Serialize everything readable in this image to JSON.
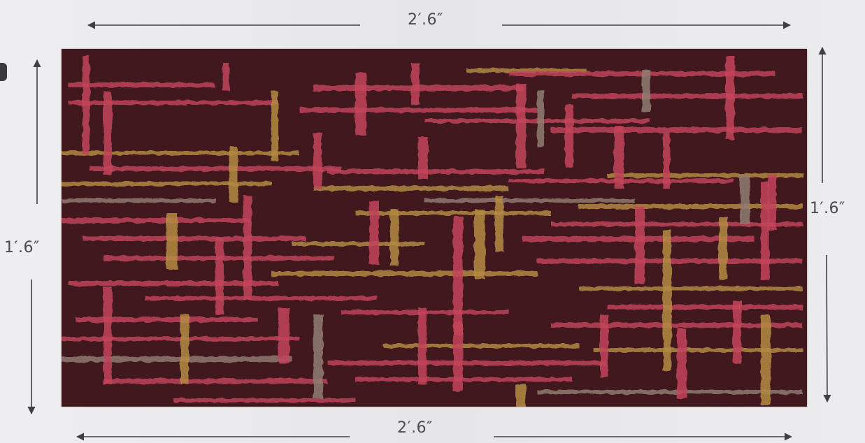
{
  "dimensions": {
    "top_width": "2′.6″",
    "bottom_width": "2′.6″",
    "left_height": "1′.6″",
    "right_height": "1′.6″"
  },
  "colors": {
    "background": "#e9e9eb",
    "rug_base": "#3b1519",
    "rug_pink": "#d94a64",
    "rug_mustard": "#c7a045",
    "rug_grey": "#9c8f80",
    "arrow": "#404042"
  }
}
